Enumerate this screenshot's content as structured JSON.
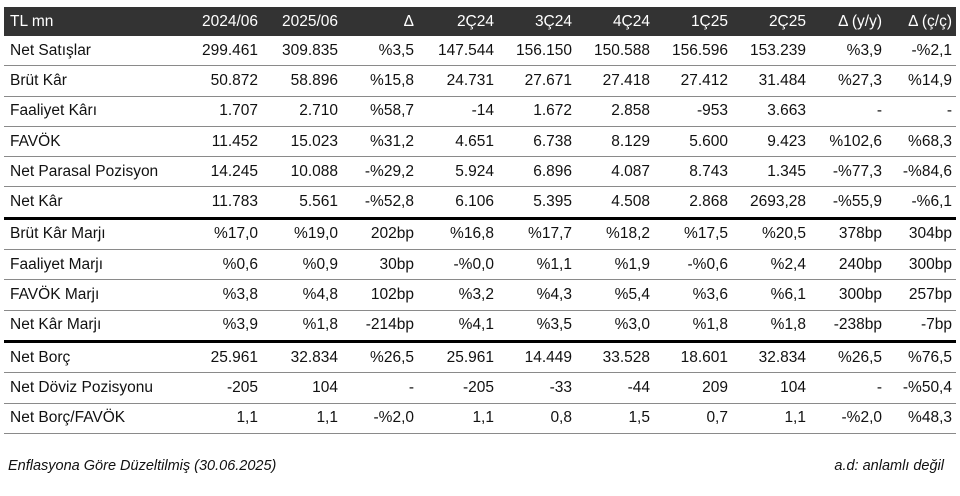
{
  "table": {
    "headers": [
      "TL mn",
      "2024/06",
      "2025/06",
      "Δ",
      "2Ç24",
      "3Ç24",
      "4Ç24",
      "1Ç25",
      "2Ç25",
      "Δ (y/y)",
      "Δ (ç/ç)"
    ],
    "rows": [
      [
        "Net Satışlar",
        "299.461",
        "309.835",
        "%3,5",
        "147.544",
        "156.150",
        "150.588",
        "156.596",
        "153.239",
        "%3,9",
        "-%2,1"
      ],
      [
        "Brüt Kâr",
        "50.872",
        "58.896",
        "%15,8",
        "24.731",
        "27.671",
        "27.418",
        "27.412",
        "31.484",
        "%27,3",
        "%14,9"
      ],
      [
        "Faaliyet Kârı",
        "1.707",
        "2.710",
        "%58,7",
        "-14",
        "1.672",
        "2.858",
        "-953",
        "3.663",
        "-",
        "-"
      ],
      [
        "FAVÖK",
        "11.452",
        "15.023",
        "%31,2",
        "4.651",
        "6.738",
        "8.129",
        "5.600",
        "9.423",
        "%102,6",
        "%68,3"
      ],
      [
        "Net Parasal Pozisyon",
        "14.245",
        "10.088",
        "-%29,2",
        "5.924",
        "6.896",
        "4.087",
        "8.743",
        "1.345",
        "-%77,3",
        "-%84,6"
      ],
      [
        "Net Kâr",
        "11.783",
        "5.561",
        "-%52,8",
        "6.106",
        "5.395",
        "4.508",
        "2.868",
        "2693,28",
        "-%55,9",
        "-%6,1"
      ],
      [
        "Brüt Kâr Marjı",
        "%17,0",
        "%19,0",
        "202bp",
        "%16,8",
        "%17,7",
        "%18,2",
        "%17,5",
        "%20,5",
        "378bp",
        "304bp"
      ],
      [
        "Faaliyet Marjı",
        "%0,6",
        "%0,9",
        "30bp",
        "-%0,0",
        "%1,1",
        "%1,9",
        "-%0,6",
        "%2,4",
        "240bp",
        "300bp"
      ],
      [
        "FAVÖK Marjı",
        "%3,8",
        "%4,8",
        "102bp",
        "%3,2",
        "%4,3",
        "%5,4",
        "%3,6",
        "%6,1",
        "300bp",
        "257bp"
      ],
      [
        "Net Kâr Marjı",
        "%3,9",
        "%1,8",
        "-214bp",
        "%4,1",
        "%3,5",
        "%3,0",
        "%1,8",
        "%1,8",
        "-238bp",
        "-7bp"
      ],
      [
        "Net Borç",
        "25.961",
        "32.834",
        "%26,5",
        "25.961",
        "14.449",
        "33.528",
        "18.601",
        "32.834",
        "%26,5",
        "%76,5"
      ],
      [
        "Net Döviz Pozisyonu",
        "-205",
        "104",
        "-",
        "-205",
        "-33",
        "-44",
        "209",
        "104",
        "-",
        "-%50,4"
      ],
      [
        "Net Borç/FAVÖK",
        "1,1",
        "1,1",
        "-%2,0",
        "1,1",
        "0,8",
        "1,5",
        "0,7",
        "1,1",
        "-%2,0",
        "%48,3"
      ]
    ]
  },
  "footer": {
    "note_left": "Enflasyona Göre Düzeltilmiş (30.06.2025)",
    "note_right": "a.d: anlamlı değil"
  }
}
